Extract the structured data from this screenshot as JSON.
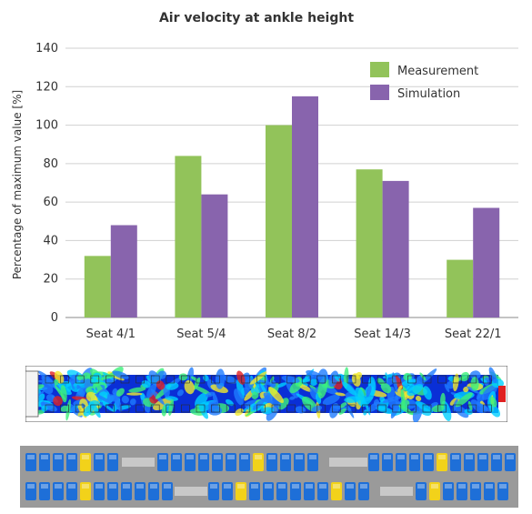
{
  "chart_data": {
    "type": "bar",
    "title": "Air velocity at ankle height",
    "ylabel": "Percentage of maximum value [%]",
    "xlabel": "",
    "categories": [
      "Seat 4/1",
      "Seat 5/4",
      "Seat 8/2",
      "Seat 14/3",
      "Seat 22/1"
    ],
    "series": [
      {
        "name": "Measurement",
        "color": "#92c35a",
        "values": [
          32,
          84,
          100,
          77,
          30
        ]
      },
      {
        "name": "Simulation",
        "color": "#8864ad",
        "values": [
          48,
          64,
          115,
          71,
          57
        ]
      }
    ],
    "ylim": [
      0,
      140
    ],
    "yticks": [
      0,
      20,
      40,
      60,
      80,
      100,
      120,
      140
    ],
    "grid": true,
    "legend": "top-right"
  },
  "contour_plot": {
    "type": "cfd-velocity-contour",
    "colors": [
      "#0a2fd6",
      "#1e7cff",
      "#00d0ff",
      "#3cf07a",
      "#f2ea2c",
      "#e02020"
    ]
  },
  "seat_map": {
    "type": "cabin-seat-layout",
    "seat_color": "#1e6fd8",
    "highlight_color": "#f2d21a",
    "aisle_color": "#c8c8c8",
    "background": "#9a9a9a"
  }
}
